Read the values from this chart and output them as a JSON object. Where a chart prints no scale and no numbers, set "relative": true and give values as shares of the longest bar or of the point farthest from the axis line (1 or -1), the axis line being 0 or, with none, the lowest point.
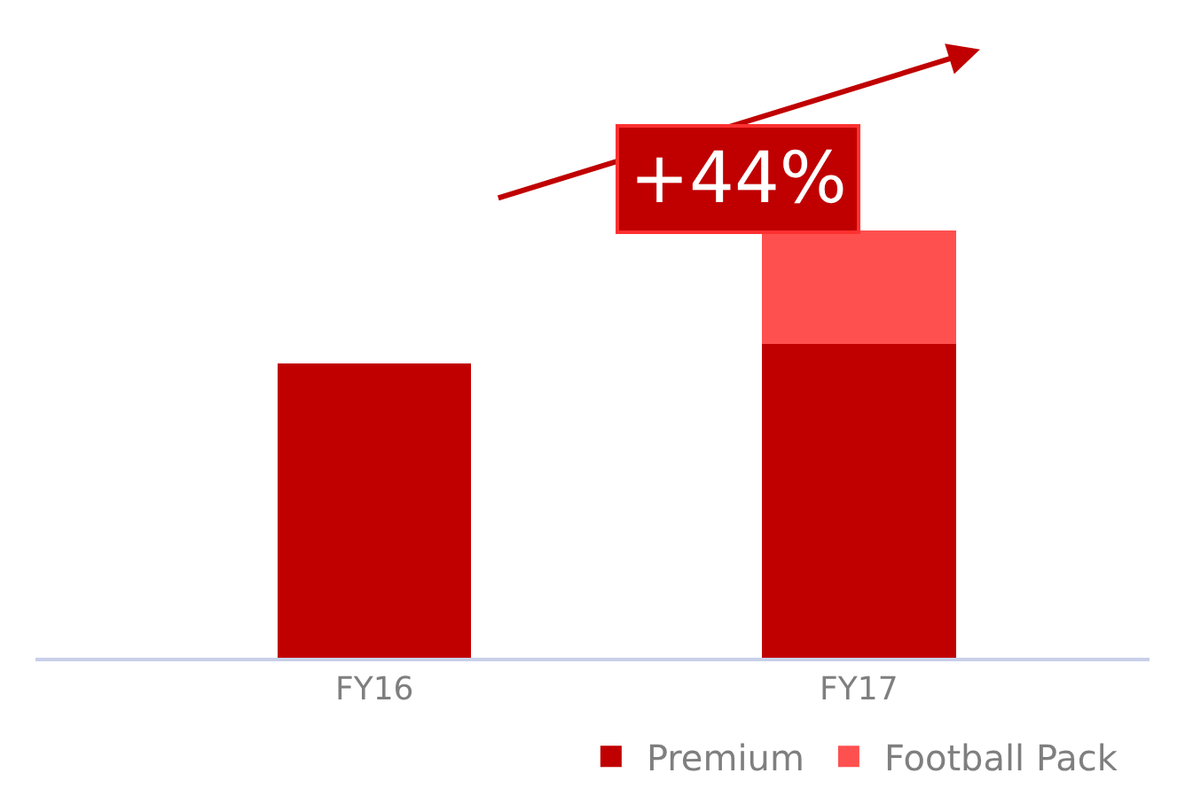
{
  "chart_data": {
    "type": "bar",
    "stacked": true,
    "relative": true,
    "categories": [
      "FY16",
      "FY17"
    ],
    "series": [
      {
        "name": "Premium",
        "color": "#c00000",
        "values": [
          0.689,
          0.735
        ]
      },
      {
        "name": "Football Pack",
        "color": "#ff5050",
        "values": [
          null,
          0.265
        ]
      }
    ],
    "annotations": [
      "+44%"
    ],
    "legend": "bottom"
  }
}
